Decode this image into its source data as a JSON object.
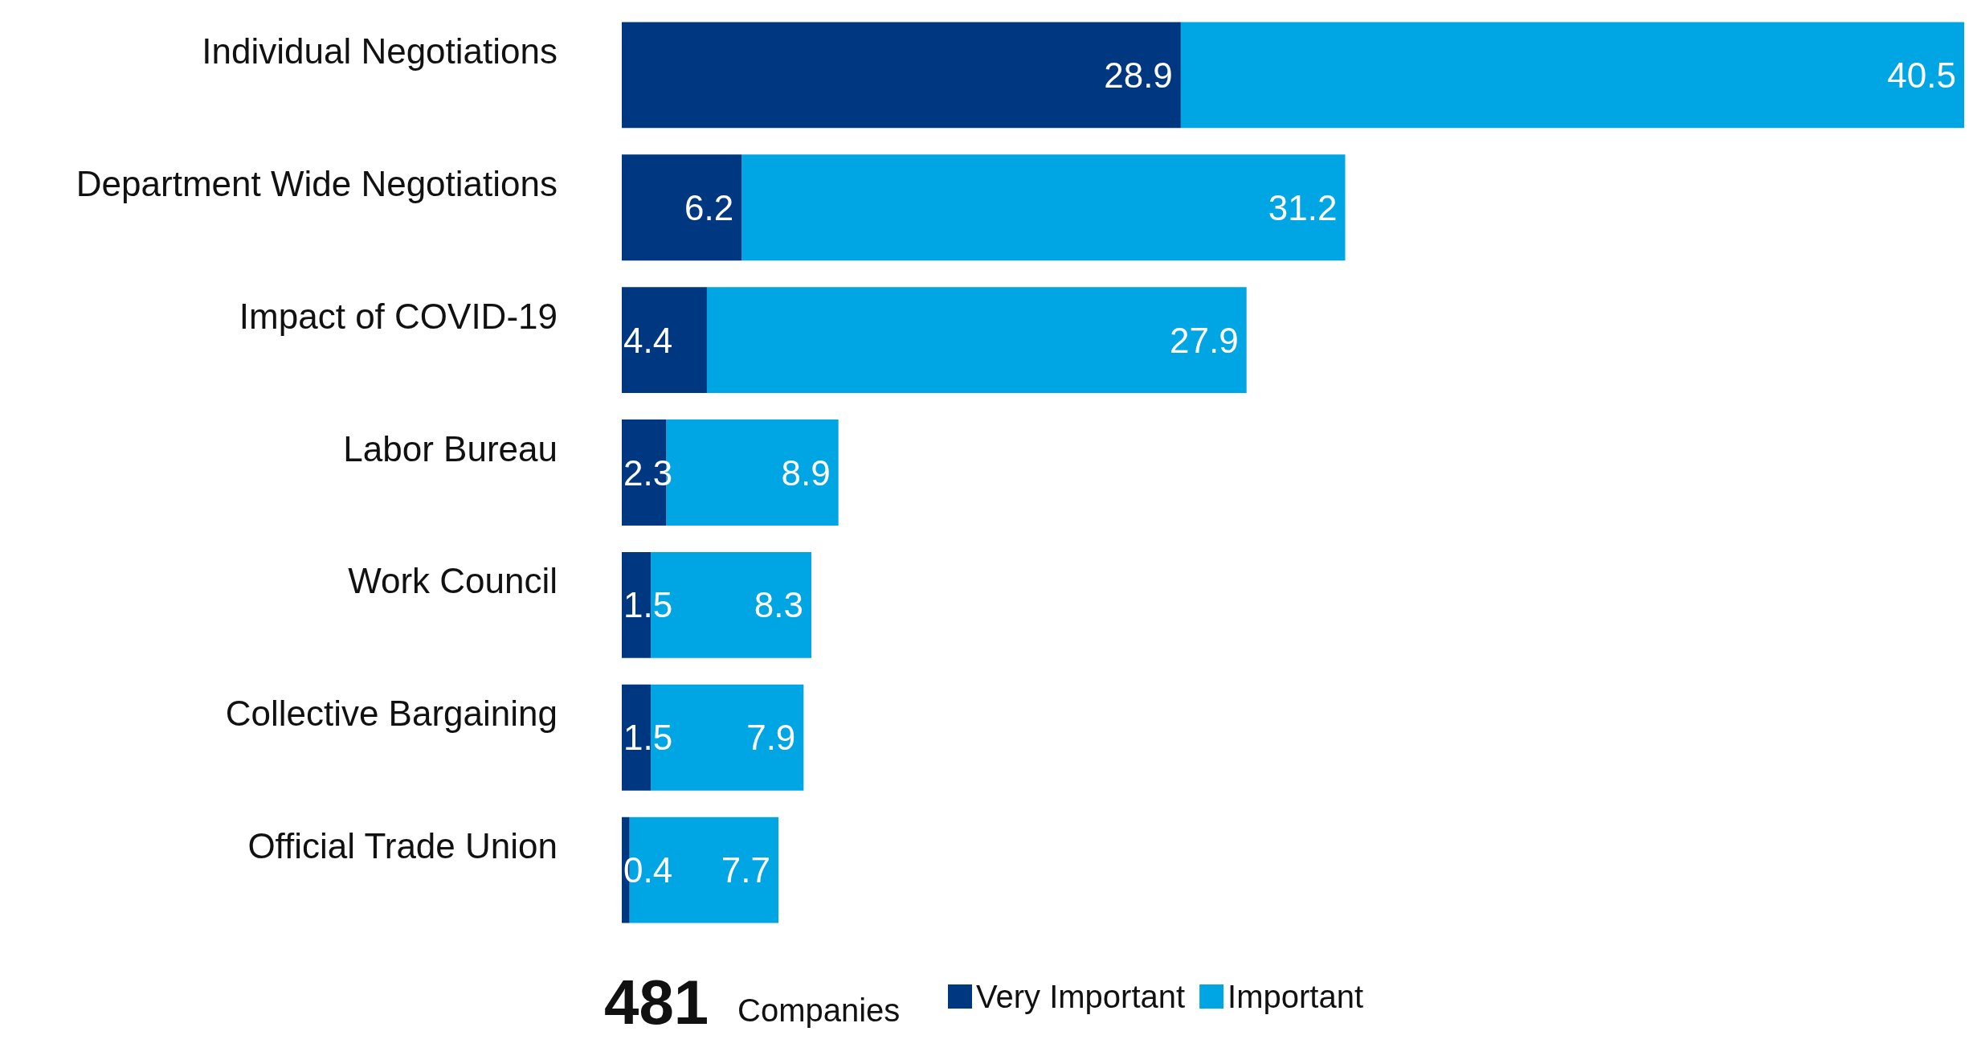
{
  "chart_data": {
    "type": "bar",
    "orientation": "horizontal",
    "stacked": true,
    "data_labels": true,
    "legend": "bottom",
    "categories": [
      "Individual Negotiations",
      "Department Wide Negotiations",
      "Impact of COVID-19",
      "Labor Bureau",
      "Work Council",
      "Collective Bargaining",
      "Official Trade Union"
    ],
    "series": [
      {
        "name": "Very Important",
        "color": "#003781",
        "values": [
          28.9,
          6.2,
          4.4,
          2.3,
          1.5,
          1.5,
          0.4
        ]
      },
      {
        "name": "Important",
        "color": "#00a5e3",
        "values": [
          40.5,
          31.2,
          27.9,
          8.9,
          8.3,
          7.9,
          7.7
        ]
      }
    ],
    "annotations": [
      "481",
      "Companies"
    ]
  }
}
